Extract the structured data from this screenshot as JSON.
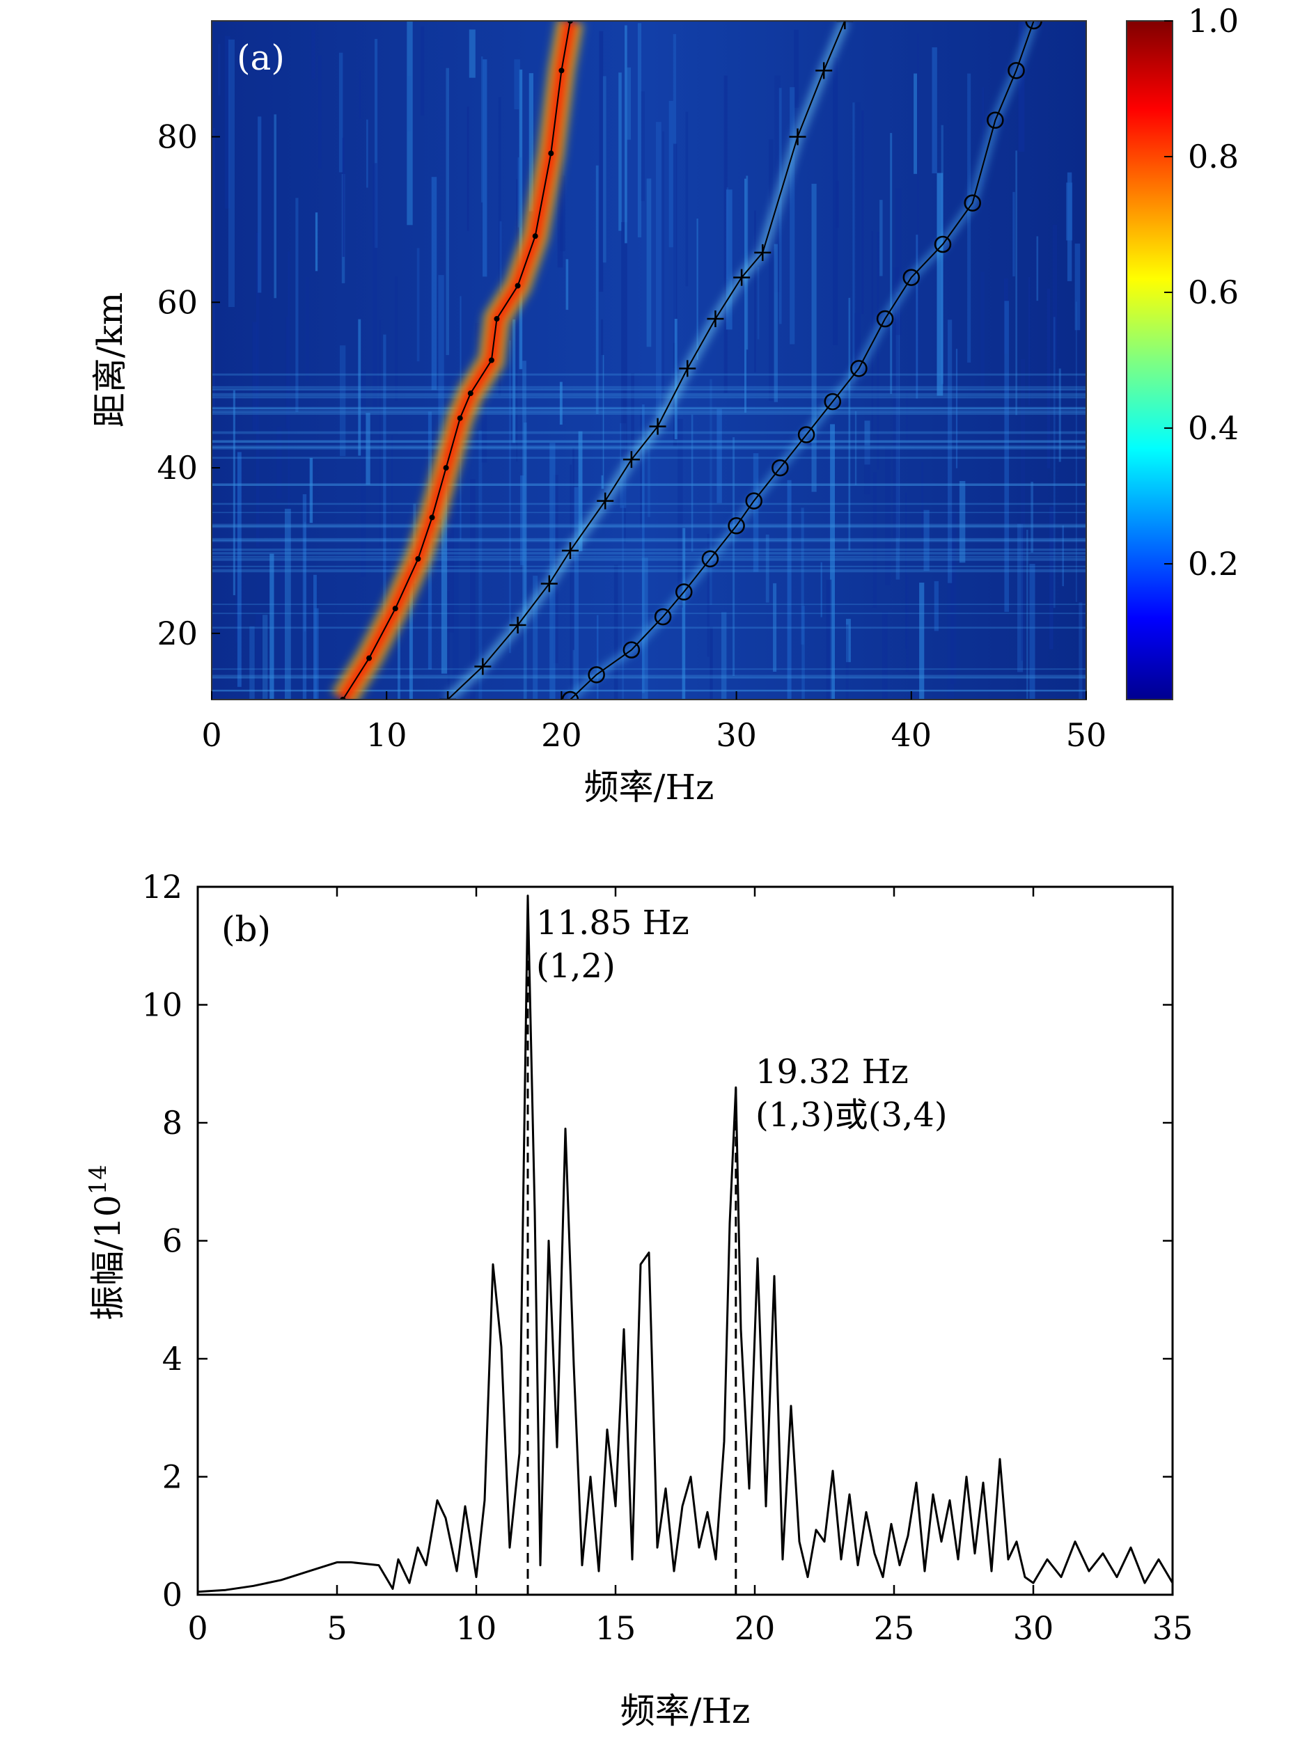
{
  "chart_data": [
    {
      "panel": "(a)",
      "type": "heatmap",
      "xlabel": "频率/Hz",
      "ylabel": "距离/km",
      "xlim": [
        0,
        50
      ],
      "ylim": [
        12,
        94
      ],
      "xticks": [
        "0",
        "10",
        "20",
        "30",
        "40",
        "50"
      ],
      "yticks": [
        "20",
        "40",
        "60",
        "80"
      ],
      "colorbar": {
        "range": [
          0,
          1.0
        ],
        "ticks": [
          "0.2",
          "0.4",
          "0.6",
          "0.8",
          "1.0"
        ],
        "colormap": "jet"
      },
      "series": [
        {
          "marker": "dot",
          "x": [
            7.5,
            9.0,
            10.5,
            11.8,
            12.6,
            13.4,
            14.2,
            14.8,
            16.0,
            16.3,
            17.5,
            18.5,
            19.4,
            20.0,
            20.5
          ],
          "y": [
            12,
            17,
            23,
            29,
            34,
            40,
            46,
            49,
            53,
            58,
            62,
            68,
            78,
            88,
            94
          ]
        },
        {
          "marker": "plus",
          "x": [
            13.5,
            15.5,
            17.5,
            19.3,
            20.5,
            22.5,
            24.0,
            25.5,
            27.2,
            28.8,
            30.3,
            31.5,
            33.5,
            35.0,
            36.2
          ],
          "y": [
            12,
            16,
            21,
            26,
            30,
            36,
            41,
            45,
            52,
            58,
            63,
            66,
            80,
            88,
            94
          ]
        },
        {
          "marker": "circle",
          "x": [
            20.5,
            22.0,
            24.0,
            25.8,
            27.0,
            28.5,
            30.0,
            31.0,
            32.5,
            34.0,
            35.5,
            37.0,
            38.5,
            40.0,
            41.8,
            43.5,
            44.8,
            46.0,
            47.0
          ],
          "y": [
            12,
            15,
            18,
            22,
            25,
            29,
            33,
            36,
            40,
            44,
            48,
            52,
            58,
            63,
            67,
            72,
            82,
            88,
            94
          ]
        }
      ]
    },
    {
      "panel": "(b)",
      "type": "line",
      "xlabel": "频率/Hz",
      "ylabel": "振幅/10",
      "ylabel_sup": "14",
      "xlim": [
        0,
        35
      ],
      "ylim": [
        0,
        12
      ],
      "xticks": [
        "0",
        "5",
        "10",
        "15",
        "20",
        "25",
        "30",
        "35"
      ],
      "yticks": [
        "0",
        "2",
        "4",
        "6",
        "8",
        "10",
        "12"
      ],
      "x": [
        0.0,
        1.0,
        2.0,
        3.0,
        4.0,
        5.0,
        5.5,
        6.5,
        7.0,
        7.2,
        7.6,
        7.9,
        8.2,
        8.6,
        8.9,
        9.3,
        9.6,
        10.0,
        10.3,
        10.6,
        10.9,
        11.2,
        11.55,
        11.85,
        12.1,
        12.3,
        12.6,
        12.9,
        13.2,
        13.5,
        13.8,
        14.1,
        14.4,
        14.7,
        15.0,
        15.3,
        15.6,
        15.9,
        16.2,
        16.5,
        16.8,
        17.1,
        17.4,
        17.7,
        18.0,
        18.3,
        18.6,
        18.9,
        19.1,
        19.32,
        19.5,
        19.8,
        20.1,
        20.4,
        20.7,
        21.0,
        21.3,
        21.6,
        21.9,
        22.2,
        22.5,
        22.8,
        23.1,
        23.4,
        23.7,
        24.0,
        24.3,
        24.6,
        24.9,
        25.2,
        25.5,
        25.8,
        26.1,
        26.4,
        26.7,
        27.0,
        27.3,
        27.6,
        27.9,
        28.2,
        28.5,
        28.8,
        29.1,
        29.4,
        29.7,
        30.0,
        30.5,
        31.0,
        31.5,
        32.0,
        32.5,
        33.0,
        33.5,
        34.0,
        34.5,
        35.0
      ],
      "y": [
        0.05,
        0.08,
        0.15,
        0.25,
        0.4,
        0.55,
        0.55,
        0.5,
        0.1,
        0.6,
        0.2,
        0.8,
        0.5,
        1.6,
        1.3,
        0.4,
        1.5,
        0.3,
        1.6,
        5.6,
        4.2,
        0.8,
        2.4,
        11.85,
        6.5,
        0.5,
        6.0,
        2.5,
        7.9,
        3.9,
        0.5,
        2.0,
        0.4,
        2.8,
        1.5,
        4.5,
        0.6,
        5.6,
        5.8,
        0.8,
        1.8,
        0.4,
        1.5,
        2.0,
        0.8,
        1.4,
        0.6,
        2.6,
        6.3,
        8.6,
        4.5,
        1.8,
        5.7,
        1.5,
        5.4,
        0.6,
        3.2,
        0.9,
        0.3,
        1.1,
        0.9,
        2.1,
        0.6,
        1.7,
        0.5,
        1.4,
        0.7,
        0.3,
        1.2,
        0.5,
        1.0,
        1.9,
        0.4,
        1.7,
        0.9,
        1.6,
        0.6,
        2.0,
        0.7,
        1.9,
        0.4,
        2.3,
        0.6,
        0.9,
        0.3,
        0.2,
        0.6,
        0.3,
        0.9,
        0.4,
        0.7,
        0.3,
        0.8,
        0.2,
        0.6,
        0.2
      ],
      "markers": [
        {
          "x": 11.85,
          "y": 11.85,
          "label": "11.85 Hz",
          "sublabel": "(1,2)"
        },
        {
          "x": 19.32,
          "y": 8.6,
          "label": "19.32 Hz",
          "sublabel": "(1,3)或(3,4)"
        }
      ]
    }
  ]
}
